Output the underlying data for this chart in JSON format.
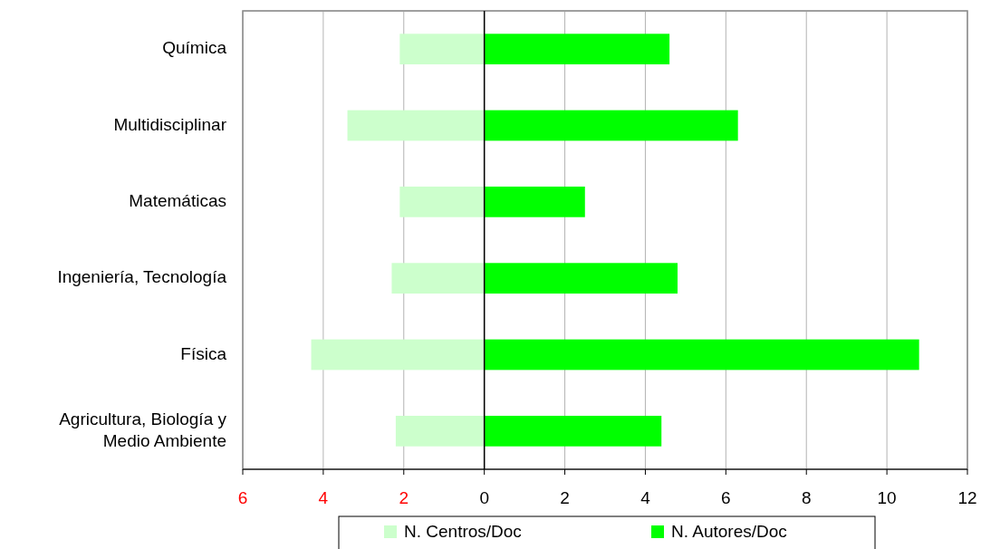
{
  "chart_data": {
    "type": "bar",
    "orientation": "horizontal",
    "stacked": true,
    "categories": [
      "Química",
      "Multidisciplinar",
      "Matemáticas",
      "Ingeniería, Tecnología",
      "Física",
      "Agricultura, Biología y Medio Ambiente"
    ],
    "series": [
      {
        "name": "N. Centros/Doc",
        "color": "#ccffcc",
        "values": [
          -2.1,
          -3.4,
          -2.1,
          -2.3,
          -4.3,
          -2.2
        ]
      },
      {
        "name": "N. Autores/Doc",
        "color": "#00ff00",
        "values": [
          4.6,
          6.3,
          2.5,
          4.8,
          10.8,
          4.4
        ]
      }
    ],
    "xlim": [
      -6,
      12
    ],
    "xticks": [
      {
        "value": -6,
        "label": "6"
      },
      {
        "value": -4,
        "label": "4"
      },
      {
        "value": -2,
        "label": "2"
      },
      0,
      2,
      4,
      6,
      8,
      10,
      12
    ],
    "grid": "x",
    "legend": "bottom"
  }
}
